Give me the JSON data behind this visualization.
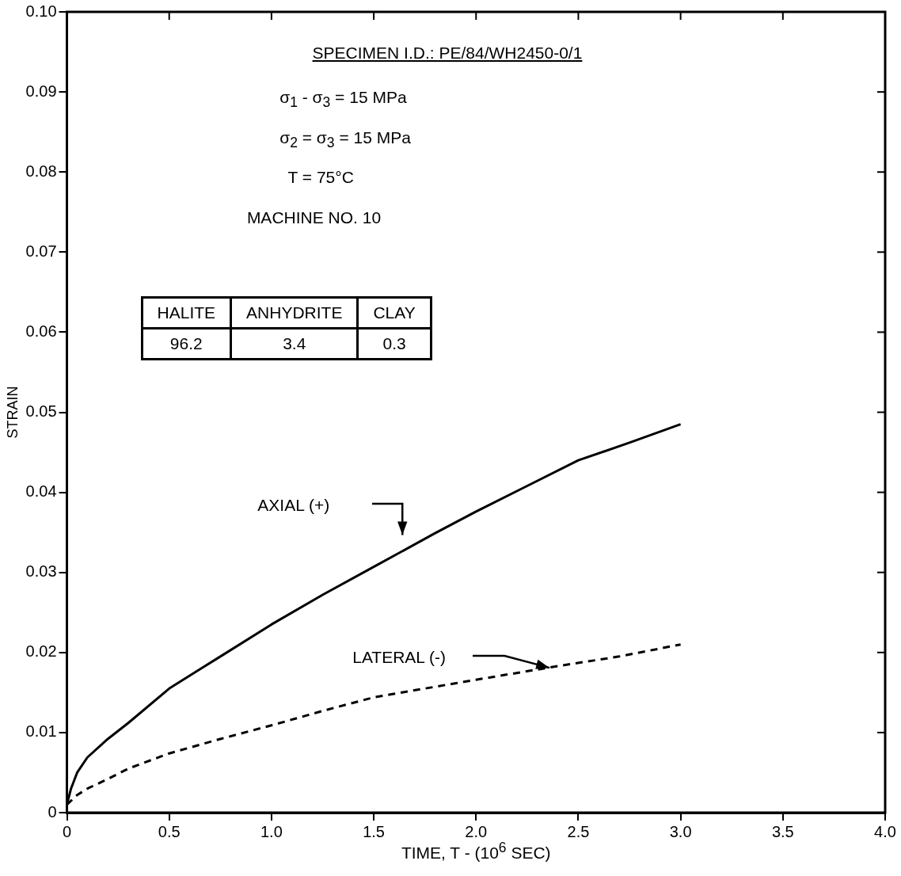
{
  "chart_data": {
    "type": "line",
    "xlabel": "TIME, T - (10$^{6}$ SEC)",
    "ylabel": "STRAIN",
    "xlim": [
      0,
      4
    ],
    "xticks": [
      0,
      0.5,
      {
        "value": 1,
        "label": "1.0"
      },
      1.5,
      {
        "value": 2,
        "label": "2.0"
      },
      2.5,
      {
        "value": 3,
        "label": "3.0"
      },
      3.5,
      {
        "value": 4,
        "label": "4.0"
      }
    ],
    "ylim": [
      0,
      0.1
    ],
    "yticks": [
      0,
      0.01,
      0.02,
      0.03,
      0.04,
      0.05,
      0.06,
      0.07,
      0.08,
      0.09,
      {
        "value": 0.1,
        "label": "0.10"
      }
    ],
    "grid": false,
    "legend": false,
    "series": [
      {
        "color": "#000000",
        "line_style": "solid",
        "x": [
          0,
          0.02,
          0.05,
          0.1,
          0.2,
          0.3,
          0.5,
          0.75,
          1.0,
          1.25,
          1.5,
          1.8,
          2.0,
          2.25,
          2.5,
          2.75,
          3.0
        ],
        "values": [
          0.001,
          0.003,
          0.005,
          0.0069,
          0.0092,
          0.0112,
          0.0155,
          0.0195,
          0.0235,
          0.0272,
          0.0307,
          0.0349,
          0.0376,
          0.0408,
          0.044,
          0.0462,
          0.0485
        ]
      },
      {
        "color": "#000000",
        "line_style": "dashed",
        "x": [
          0,
          0.05,
          0.1,
          0.2,
          0.3,
          0.5,
          0.75,
          1.0,
          1.25,
          1.5,
          1.75,
          2.0,
          2.4,
          2.7,
          3.0
        ],
        "values": [
          0.001,
          0.0022,
          0.003,
          0.0042,
          0.0055,
          0.0074,
          0.0092,
          0.0109,
          0.0127,
          0.0144,
          0.0155,
          0.0166,
          0.0183,
          0.0195,
          0.021
        ]
      }
    ],
    "annotations": [
      "SPECIMEN I.D.: PE/84/WH2450-0/1",
      "σ$_{1}$ - σ$_{3}$ = 15 MPa",
      "σ$_{2}$ = σ$_{3}$ = 15 MPa",
      "T = 75°C",
      "MACHINE NO. 10",
      "HALITE",
      "ANHYDRITE",
      "CLAY",
      "96.2",
      "3.4",
      "0.3",
      "AXIAL (+)",
      "LATERAL (-)"
    ]
  }
}
